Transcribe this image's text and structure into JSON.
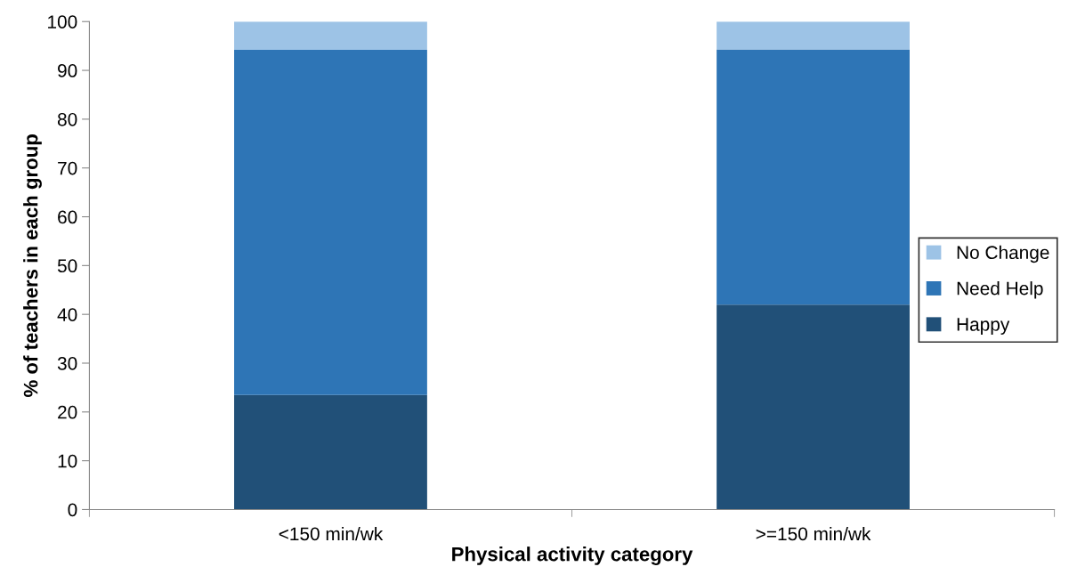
{
  "chart_data": {
    "type": "bar",
    "stacked": true,
    "xlabel": "Physical activity category",
    "ylabel": "% of teachers in each group",
    "categories": [
      "<150 min/wk",
      ">=150 min/wk"
    ],
    "series": [
      {
        "name": "Happy",
        "color": "#215078",
        "values": [
          23.5,
          42.0
        ]
      },
      {
        "name": "Need Help",
        "color": "#2e75b6",
        "values": [
          70.7,
          52.3
        ]
      },
      {
        "name": "No Change",
        "color": "#9dc3e6",
        "values": [
          5.8,
          5.7
        ]
      }
    ],
    "ylim": [
      0,
      100
    ],
    "yticks": [
      0,
      10,
      20,
      30,
      40,
      50,
      60,
      70,
      80,
      90,
      100
    ],
    "grid": false,
    "legend": "right"
  }
}
